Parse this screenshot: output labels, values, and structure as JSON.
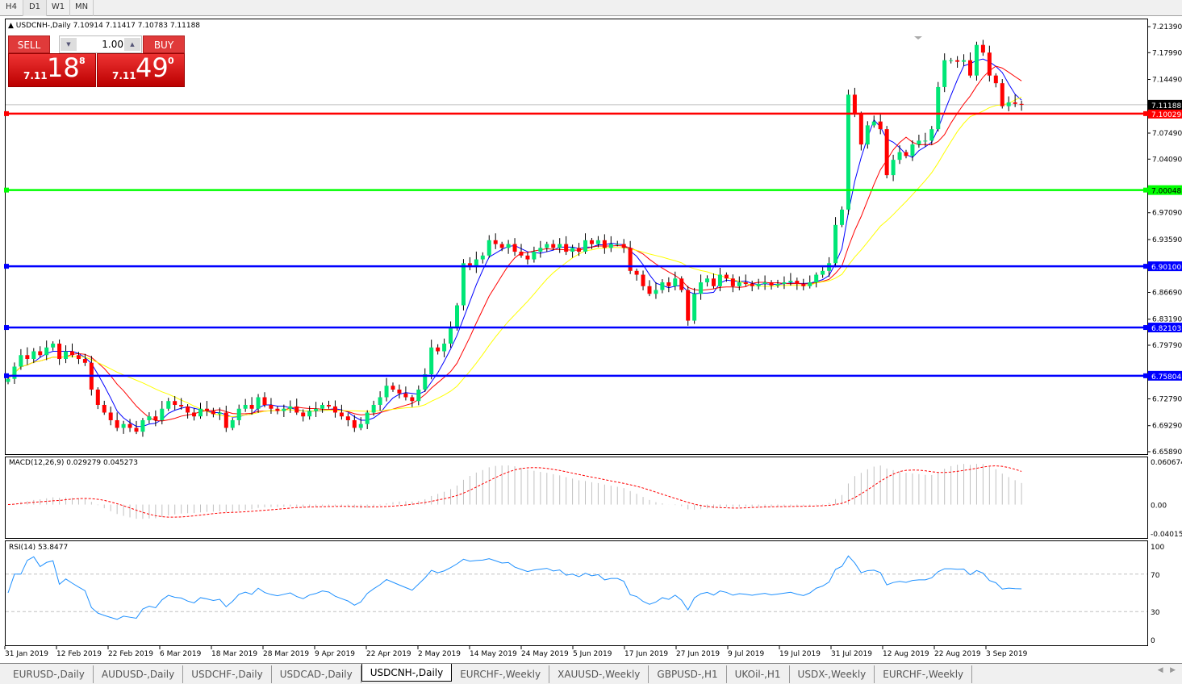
{
  "timeframes": [
    "H4",
    "D1",
    "W1",
    "MN"
  ],
  "active_timeframe": "D1",
  "chart": {
    "title": "USDCNH-,Daily",
    "ohlc": "7.10914 7.11417 7.10783 7.11188"
  },
  "trade_panel": {
    "sell_label": "SELL",
    "buy_label": "BUY",
    "lot": "1.00",
    "sell_small": "7.11",
    "sell_big": "18",
    "sell_pip": "8",
    "buy_small": "7.11",
    "buy_big": "49",
    "buy_pip": "0"
  },
  "colors": {
    "bull": "#00e676",
    "bear": "#ff0000",
    "ma_fast": "#0000ff",
    "ma_mid": "#ff0000",
    "ma_slow": "#ffff00",
    "macd_hist": "#c0c0c0",
    "macd_signal": "#ff0000",
    "rsi": "#1e90ff"
  },
  "chart_data": {
    "type": "candlestick",
    "price_axis": {
      "ticks": [
        "7.21390",
        "7.17990",
        "7.14490",
        "7.07490",
        "7.04090",
        "6.97090",
        "6.93590",
        "6.86690",
        "6.83190",
        "6.79790",
        "6.72790",
        "6.69290",
        "6.65890"
      ],
      "range": [
        6.6589,
        7.2139
      ]
    },
    "current_price": "7.11188",
    "horizontal_lines": [
      {
        "price": "7.10029",
        "color": "#ff0000"
      },
      {
        "price": "7.00048",
        "color": "#00ff00"
      },
      {
        "price": "6.90100",
        "color": "#0000ff"
      },
      {
        "price": "6.82103",
        "color": "#0000ff"
      },
      {
        "price": "6.75804",
        "color": "#0000ff"
      }
    ],
    "date_labels": [
      "31 Jan 2019",
      "12 Feb 2019",
      "22 Feb 2019",
      "6 Mar 2019",
      "18 Mar 2019",
      "28 Mar 2019",
      "9 Apr 2019",
      "22 Apr 2019",
      "2 May 2019",
      "14 May 2019",
      "24 May 2019",
      "5 Jun 2019",
      "17 Jun 2019",
      "27 Jun 2019",
      "9 Jul 2019",
      "19 Jul 2019",
      "31 Jul 2019",
      "12 Aug 2019",
      "22 Aug 2019",
      "3 Sep 2019"
    ],
    "closes": [
      6.754,
      6.77,
      6.785,
      6.78,
      6.79,
      6.785,
      6.795,
      6.8,
      6.78,
      6.79,
      6.785,
      6.78,
      6.775,
      6.74,
      6.72,
      6.71,
      6.7,
      6.69,
      6.695,
      6.69,
      6.685,
      6.7,
      6.705,
      6.7,
      6.715,
      6.725,
      6.72,
      6.718,
      6.71,
      6.705,
      6.715,
      6.712,
      6.708,
      6.71,
      6.69,
      6.7,
      6.715,
      6.72,
      6.715,
      6.73,
      6.72,
      6.715,
      6.712,
      6.715,
      6.718,
      6.71,
      6.705,
      6.712,
      6.715,
      6.72,
      6.718,
      6.71,
      6.705,
      6.7,
      6.69,
      6.695,
      6.71,
      6.72,
      6.73,
      6.745,
      6.74,
      6.735,
      6.73,
      6.725,
      6.74,
      6.76,
      6.795,
      6.79,
      6.8,
      6.82,
      6.85,
      6.905,
      6.9,
      6.91,
      6.915,
      6.935,
      6.93,
      6.925,
      6.93,
      6.92,
      6.915,
      6.91,
      6.92,
      6.925,
      6.93,
      6.925,
      6.93,
      6.92,
      6.925,
      6.92,
      6.935,
      6.93,
      6.935,
      6.925,
      6.93,
      6.93,
      6.925,
      6.895,
      6.89,
      6.875,
      6.865,
      6.87,
      6.88,
      6.875,
      6.885,
      6.87,
      6.83,
      6.865,
      6.88,
      6.885,
      6.875,
      6.89,
      6.885,
      6.875,
      6.88,
      6.878,
      6.875,
      6.878,
      6.88,
      6.876,
      6.878,
      6.88,
      6.882,
      6.878,
      6.875,
      6.88,
      6.89,
      6.895,
      6.905,
      6.955,
      6.975,
      7.125,
      7.1,
      7.06,
      7.085,
      7.09,
      7.08,
      7.02,
      7.04,
      7.05,
      7.045,
      7.06,
      7.065,
      7.065,
      7.08,
      7.135,
      7.17,
      7.17,
      7.168,
      7.17,
      7.15,
      7.19,
      7.18,
      7.15,
      7.14,
      7.11,
      7.115,
      7.113,
      7.11188
    ],
    "macd": {
      "label": "MACD(12,26,9) 0.029279 0.045273",
      "ticks": [
        "0.060674",
        "0.00",
        "-0.040152"
      ],
      "range": [
        -0.040152,
        0.060674
      ]
    },
    "rsi": {
      "label": "RSI(14) 53.8477",
      "ticks": [
        "100",
        "70",
        "30",
        "0"
      ],
      "levels": [
        70,
        30
      ]
    }
  },
  "symbol_tabs": [
    "EURUSD-,Daily",
    "AUDUSD-,Daily",
    "USDCHF-,Daily",
    "USDCAD-,Daily",
    "USDCNH-,Daily",
    "EURCHF-,Weekly",
    "XAUUSD-,Weekly",
    "GBPUSD-,H1",
    "UKOil-,H1",
    "USDX-,Weekly",
    "EURCHF-,Weekly"
  ],
  "active_tab": "USDCNH-,Daily"
}
